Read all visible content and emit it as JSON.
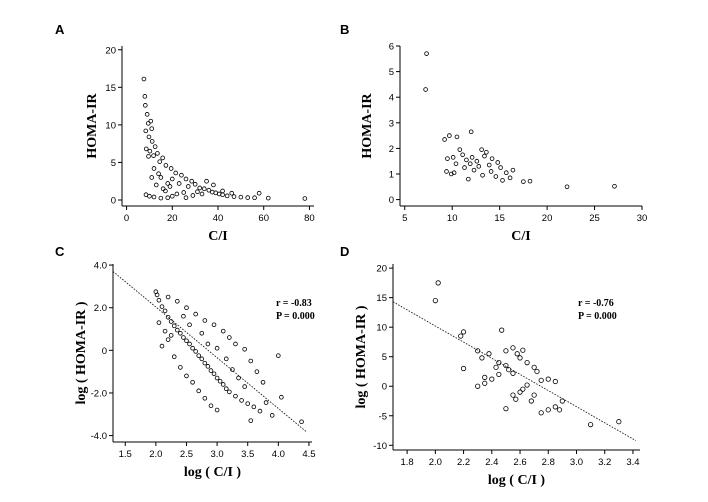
{
  "chart_data": [
    {
      "panel": "A",
      "type": "scatter",
      "xlabel": "C/I",
      "ylabel": "HOMA-IR",
      "xlim": [
        -2,
        82
      ],
      "ylim": [
        -0.8,
        20.5
      ],
      "xticks": [
        0,
        20,
        40,
        60,
        80
      ],
      "yticks": [
        0,
        5,
        10,
        15,
        20
      ],
      "series": [
        {
          "name": "subjects",
          "points": [
            [
              7.6,
              16.1
            ],
            [
              8,
              13.8
            ],
            [
              8.2,
              12.6
            ],
            [
              9,
              11.4
            ],
            [
              9.5,
              10.2
            ],
            [
              10.6,
              10.5
            ],
            [
              11,
              9.5
            ],
            [
              8.4,
              9.2
            ],
            [
              9.8,
              8.4
            ],
            [
              11.2,
              7.8
            ],
            [
              12.5,
              7.1
            ],
            [
              8.6,
              6.8
            ],
            [
              10.2,
              6.5
            ],
            [
              13.5,
              6.2
            ],
            [
              15.8,
              5.6
            ],
            [
              9.6,
              5.8
            ],
            [
              11.8,
              5.9
            ],
            [
              14.5,
              5.1
            ],
            [
              17.2,
              4.6
            ],
            [
              19.5,
              4.2
            ],
            [
              21.5,
              3.6
            ],
            [
              24,
              3.3
            ],
            [
              26,
              2.8
            ],
            [
              28.5,
              2.5
            ],
            [
              30,
              2.1
            ],
            [
              32,
              1.6
            ],
            [
              34,
              1.5
            ],
            [
              36,
              1.3
            ],
            [
              37.5,
              1.05
            ],
            [
              39,
              0.95
            ],
            [
              40.5,
              0.8
            ],
            [
              42,
              0.7
            ],
            [
              44,
              0.55
            ],
            [
              47,
              0.45
            ],
            [
              50,
              0.38
            ],
            [
              53,
              0.32
            ],
            [
              56,
              0.3
            ],
            [
              62,
              0.25
            ],
            [
              78,
              0.2
            ],
            [
              58,
              0.9
            ],
            [
              46,
              0.9
            ],
            [
              42,
              1.2
            ],
            [
              38,
              2.0
            ],
            [
              35,
              2.5
            ],
            [
              25,
              1.0
            ],
            [
              22,
              0.8
            ],
            [
              20,
              0.5
            ],
            [
              18,
              0.3
            ],
            [
              15,
              0.25
            ],
            [
              12,
              0.4
            ],
            [
              10,
              0.5
            ],
            [
              8.5,
              0.7
            ],
            [
              16,
              1.5
            ],
            [
              18,
              2.2
            ],
            [
              20,
              2.8
            ],
            [
              14,
              3.5
            ],
            [
              12,
              4.2
            ],
            [
              11,
              3.0
            ],
            [
              13,
              2.0
            ],
            [
              15,
              3.0
            ],
            [
              17,
              1.2
            ],
            [
              19,
              1.8
            ],
            [
              23,
              2.2
            ],
            [
              27,
              1.8
            ],
            [
              31,
              1.1
            ],
            [
              33,
              0.8
            ],
            [
              29,
              0.6
            ],
            [
              26,
              0.3
            ]
          ]
        }
      ]
    },
    {
      "panel": "B",
      "type": "scatter",
      "xlabel": "C/I",
      "ylabel": "HOMA-IR",
      "xlim": [
        4.5,
        30
      ],
      "ylim": [
        -0.25,
        6
      ],
      "xticks": [
        5,
        10,
        15,
        20,
        25,
        30
      ],
      "yticks": [
        0,
        1,
        2,
        3,
        4,
        5,
        6
      ],
      "series": [
        {
          "name": "subjects",
          "points": [
            [
              7.3,
              5.7
            ],
            [
              7.2,
              4.3
            ],
            [
              9.2,
              2.35
            ],
            [
              9.7,
              2.5
            ],
            [
              10.5,
              2.45
            ],
            [
              12,
              2.65
            ],
            [
              9.5,
              1.6
            ],
            [
              10.1,
              1.65
            ],
            [
              10.8,
              1.95
            ],
            [
              11.1,
              1.75
            ],
            [
              11.5,
              1.55
            ],
            [
              12.1,
              1.65
            ],
            [
              12.6,
              1.5
            ],
            [
              13.1,
              1.95
            ],
            [
              13.6,
              1.85
            ],
            [
              14.2,
              1.6
            ],
            [
              14.8,
              1.45
            ],
            [
              10.2,
              1.05
            ],
            [
              11.3,
              1.25
            ],
            [
              12.3,
              1.15
            ],
            [
              13.2,
              0.95
            ],
            [
              13.9,
              1.35
            ],
            [
              15.1,
              1.25
            ],
            [
              15.7,
              1.05
            ],
            [
              16.1,
              0.85
            ],
            [
              16.4,
              1.15
            ],
            [
              17.5,
              0.7
            ],
            [
              18.2,
              0.72
            ],
            [
              22.1,
              0.5
            ],
            [
              27.1,
              0.52
            ],
            [
              9.9,
              1.0
            ],
            [
              11.7,
              0.8
            ],
            [
              12.8,
              1.3
            ],
            [
              13.4,
              1.7
            ],
            [
              14.1,
              1.1
            ],
            [
              14.6,
              0.9
            ],
            [
              15.3,
              0.75
            ],
            [
              10.4,
              1.4
            ],
            [
              9.4,
              1.1
            ],
            [
              11.9,
              1.4
            ]
          ]
        }
      ]
    },
    {
      "panel": "C",
      "type": "scatter",
      "xlabel": "log ( C/I )",
      "ylabel": "log ( HOMA-IR )",
      "xlim": [
        1.3,
        4.55
      ],
      "ylim": [
        -4.3,
        4.05
      ],
      "xticks": [
        1.5,
        2.0,
        2.5,
        3.0,
        3.5,
        4.0,
        4.5
      ],
      "ytick_values": [
        -4,
        -2,
        0,
        2,
        4
      ],
      "yticks": [
        "-4.0",
        "-2.0",
        "0",
        "2.0",
        "4.0"
      ],
      "fit_line": {
        "x": [
          1.3,
          4.45
        ],
        "y": [
          3.7,
          -3.8
        ]
      },
      "annotations": {
        "r": "r = -0.83",
        "p": "P = 0.000"
      },
      "series": [
        {
          "name": "subjects",
          "points": [
            [
              2.0,
              2.75
            ],
            [
              2.02,
              2.6
            ],
            [
              2.05,
              2.35
            ],
            [
              2.1,
              2.05
            ],
            [
              2.15,
              1.85
            ],
            [
              2.2,
              1.55
            ],
            [
              2.25,
              1.35
            ],
            [
              2.3,
              1.15
            ],
            [
              2.35,
              0.95
            ],
            [
              2.4,
              0.8
            ],
            [
              2.45,
              0.6
            ],
            [
              2.5,
              0.45
            ],
            [
              2.55,
              0.3
            ],
            [
              2.6,
              0.1
            ],
            [
              2.65,
              -0.05
            ],
            [
              2.7,
              -0.25
            ],
            [
              2.75,
              -0.4
            ],
            [
              2.8,
              -0.6
            ],
            [
              2.85,
              -0.75
            ],
            [
              2.9,
              -0.95
            ],
            [
              2.95,
              -1.1
            ],
            [
              3.0,
              -1.3
            ],
            [
              3.05,
              -1.45
            ],
            [
              3.1,
              -1.6
            ],
            [
              3.15,
              -1.8
            ],
            [
              3.2,
              -1.95
            ],
            [
              3.3,
              -2.15
            ],
            [
              3.4,
              -2.35
            ],
            [
              3.5,
              -2.5
            ],
            [
              3.6,
              -2.65
            ],
            [
              3.7,
              -2.85
            ],
            [
              3.8,
              -2.45
            ],
            [
              3.9,
              -3.05
            ],
            [
              4.05,
              -2.2
            ],
            [
              4.38,
              -3.35
            ],
            [
              4.0,
              -0.25
            ],
            [
              3.55,
              -3.3
            ],
            [
              2.1,
              0.2
            ],
            [
              2.2,
              0.5
            ],
            [
              2.3,
              -0.3
            ],
            [
              2.4,
              -0.8
            ],
            [
              2.5,
              -1.2
            ],
            [
              2.6,
              -1.5
            ],
            [
              2.7,
              -1.9
            ],
            [
              2.8,
              -2.25
            ],
            [
              2.9,
              -2.6
            ],
            [
              3.0,
              -2.8
            ],
            [
              2.2,
              2.5
            ],
            [
              2.35,
              2.3
            ],
            [
              2.5,
              2.0
            ],
            [
              2.65,
              1.7
            ],
            [
              2.8,
              1.4
            ],
            [
              2.95,
              1.2
            ],
            [
              3.1,
              0.9
            ],
            [
              3.2,
              0.6
            ],
            [
              3.3,
              0.3
            ],
            [
              3.45,
              0.05
            ],
            [
              3.55,
              -0.5
            ],
            [
              3.65,
              -1.0
            ],
            [
              3.75,
              -1.5
            ],
            [
              2.05,
              1.3
            ],
            [
              2.15,
              0.9
            ],
            [
              2.25,
              0.7
            ],
            [
              2.45,
              1.6
            ],
            [
              2.55,
              1.2
            ],
            [
              2.75,
              0.8
            ],
            [
              2.85,
              0.3
            ],
            [
              3.0,
              0.1
            ],
            [
              3.15,
              -0.4
            ],
            [
              3.25,
              -0.9
            ],
            [
              3.35,
              -1.3
            ],
            [
              3.45,
              -1.7
            ]
          ]
        }
      ]
    },
    {
      "panel": "D",
      "type": "scatter",
      "xlabel": "log ( C/I )",
      "ylabel": "log ( HOMA-IR )",
      "xlim": [
        1.7,
        3.45
      ],
      "ylim": [
        -10.8,
        20.7
      ],
      "xticks": [
        1.8,
        2.0,
        2.2,
        2.4,
        2.6,
        2.8,
        3.0,
        3.2,
        3.4
      ],
      "yticks": [
        -10,
        -5,
        0,
        5,
        10,
        15,
        20
      ],
      "fit_line": {
        "x": [
          1.7,
          3.42
        ],
        "y": [
          14.3,
          -9.2
        ]
      },
      "annotations": {
        "r": "r = -0.76",
        "p": "P = 0.000"
      },
      "series": [
        {
          "name": "subjects",
          "points": [
            [
              2.02,
              17.5
            ],
            [
              2.0,
              14.5
            ],
            [
              2.2,
              9.2
            ],
            [
              2.18,
              8.5
            ],
            [
              2.2,
              3.0
            ],
            [
              2.3,
              6.0
            ],
            [
              2.33,
              4.8
            ],
            [
              2.38,
              5.5
            ],
            [
              2.43,
              3.2
            ],
            [
              2.47,
              9.5
            ],
            [
              2.5,
              6.0
            ],
            [
              2.55,
              6.5
            ],
            [
              2.58,
              5.5
            ],
            [
              2.6,
              4.8
            ],
            [
              2.62,
              6.1
            ],
            [
              2.5,
              3.5
            ],
            [
              2.45,
              2.0
            ],
            [
              2.55,
              2.2
            ],
            [
              2.65,
              4.0
            ],
            [
              2.7,
              3.2
            ],
            [
              2.72,
              2.5
            ],
            [
              2.75,
              1.0
            ],
            [
              2.8,
              1.2
            ],
            [
              2.85,
              0.8
            ],
            [
              2.3,
              0.0
            ],
            [
              2.35,
              0.5
            ],
            [
              2.4,
              1.2
            ],
            [
              2.5,
              -3.8
            ],
            [
              2.55,
              -1.5
            ],
            [
              2.6,
              -1.0
            ],
            [
              2.62,
              -0.5
            ],
            [
              2.65,
              0.2
            ],
            [
              2.7,
              -1.5
            ],
            [
              2.75,
              -4.5
            ],
            [
              2.8,
              -4.0
            ],
            [
              2.85,
              -3.5
            ],
            [
              2.9,
              -2.5
            ],
            [
              2.88,
              -4.0
            ],
            [
              3.1,
              -6.5
            ],
            [
              3.3,
              -6.0
            ],
            [
              2.57,
              -2.2
            ],
            [
              2.45,
              4.0
            ],
            [
              2.35,
              1.5
            ],
            [
              2.68,
              -2.5
            ],
            [
              2.52,
              2.8
            ]
          ]
        }
      ]
    }
  ]
}
